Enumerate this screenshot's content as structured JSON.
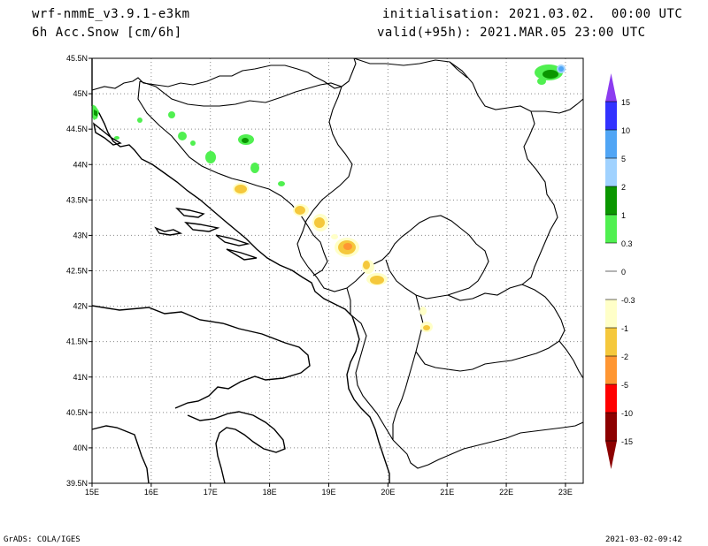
{
  "header": {
    "model": "wrf-nmmE_v3.9.1-e3km",
    "field": "6h Acc.Snow [cm/6h]",
    "init": "initialisation: 2021.03.02.  00:00 UTC",
    "valid": "valid(+95h): 2021.MAR.05 23:00 UTC"
  },
  "axes": {
    "lat_ticks": [
      "45.5N",
      "45N",
      "44.5N",
      "44N",
      "43.5N",
      "43N",
      "42.5N",
      "42N",
      "41.5N",
      "41N",
      "40.5N",
      "40N",
      "39.5N"
    ],
    "lon_ticks": [
      "15E",
      "16E",
      "17E",
      "18E",
      "19E",
      "20E",
      "21E",
      "22E",
      "23E"
    ],
    "lat_range": [
      39.5,
      45.5
    ],
    "lon_range": [
      15,
      23.3
    ]
  },
  "colorbar": {
    "labels": [
      "15",
      "10",
      "5",
      "2",
      "1",
      "0.3",
      "0",
      "-0.3",
      "-1",
      "-2",
      "-5",
      "-10",
      "-15"
    ],
    "colors": [
      "#3232ff",
      "#50a5f5",
      "#a0d2ff",
      "#0a9600",
      "#50f050",
      "#ffffff",
      "#ffffff",
      "#ffffc8",
      "#f5c83c",
      "#ff9632",
      "#ff0000",
      "#c80000",
      "#8c0000"
    ],
    "top_cap_color": "#8c3cf0",
    "bottom_cap_color": "#8c0000"
  },
  "footer": {
    "left": "GrADS: COLA/IGES",
    "right": "2021-03-02-09:42"
  }
}
